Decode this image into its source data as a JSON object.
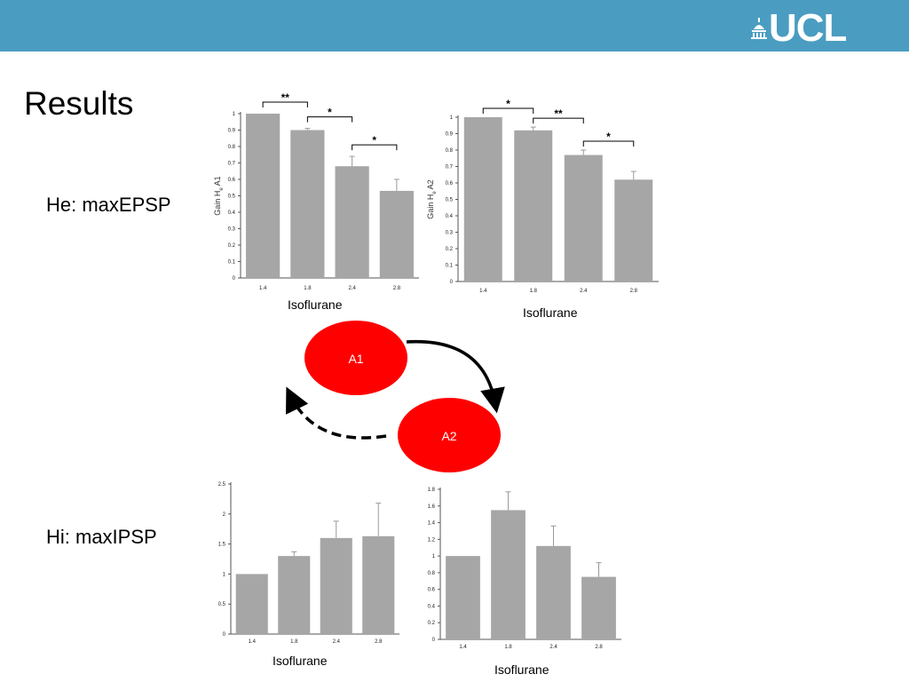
{
  "slide": {
    "title": "Results",
    "logo_text": "UCL",
    "he_label": "He: maxEPSP",
    "hi_label": "Hi: maxIPSP",
    "colors": {
      "header": "#4a9dc1",
      "bar": "#a6a6a6",
      "node": "#ff0000"
    }
  },
  "diagram": {
    "nodes": [
      "A1",
      "A2"
    ],
    "edges": [
      {
        "from": "A1",
        "to": "A2",
        "style": "solid"
      },
      {
        "from": "A2",
        "to": "A1",
        "style": "dashed"
      }
    ]
  },
  "chart_data": [
    {
      "id": "he-a1",
      "type": "bar",
      "categories": [
        "1.4",
        "1.8",
        "2.4",
        "2.8"
      ],
      "values": [
        1.0,
        0.9,
        0.68,
        0.53
      ],
      "errors": [
        0.0,
        0.01,
        0.06,
        0.07
      ],
      "ylim": [
        0,
        1
      ],
      "yticks": [
        0,
        0.1,
        0.2,
        0.3,
        0.4,
        0.5,
        0.6,
        0.7,
        0.8,
        0.9,
        1
      ],
      "ytick_labels": [
        "0",
        "0.1",
        "0.2",
        "0.3",
        "0.4",
        "0.5",
        "0.6",
        "0.7",
        "0.8",
        "0.9",
        "1"
      ],
      "ylabel": "Gain H",
      "ylabel_sub": "e",
      "ylabel_suffix": " A1",
      "xlabel": "Isoflurane",
      "significance": [
        {
          "from": 0,
          "to": 1,
          "label": "**"
        },
        {
          "from": 1,
          "to": 2,
          "label": "*"
        },
        {
          "from": 2,
          "to": 3,
          "label": "*"
        }
      ]
    },
    {
      "id": "he-a2",
      "type": "bar",
      "categories": [
        "1.4",
        "1.8",
        "2.4",
        "2.8"
      ],
      "values": [
        1.0,
        0.92,
        0.77,
        0.62
      ],
      "errors": [
        0.0,
        0.02,
        0.03,
        0.05
      ],
      "ylim": [
        0,
        1
      ],
      "yticks": [
        0,
        0.1,
        0.2,
        0.3,
        0.4,
        0.5,
        0.6,
        0.7,
        0.8,
        0.9,
        1
      ],
      "ytick_labels": [
        "0",
        "0.1",
        "0.2",
        "0.3",
        "0.4",
        "0.5",
        "0.6",
        "0.7",
        "0.8",
        "0.9",
        "1"
      ],
      "ylabel": "Gain H",
      "ylabel_sub": "e",
      "ylabel_suffix": " A2",
      "xlabel": "Isoflurane",
      "significance": [
        {
          "from": 0,
          "to": 1,
          "label": "*"
        },
        {
          "from": 1,
          "to": 2,
          "label": "**"
        },
        {
          "from": 2,
          "to": 3,
          "label": "*"
        }
      ]
    },
    {
      "id": "hi-a1",
      "type": "bar",
      "categories": [
        "1.4",
        "1.8",
        "2.4",
        "2.8"
      ],
      "values": [
        1.0,
        1.3,
        1.6,
        1.63
      ],
      "errors": [
        0.0,
        0.07,
        0.28,
        0.55
      ],
      "ylim": [
        0,
        2.5
      ],
      "yticks": [
        0,
        0.5,
        1,
        1.5,
        2,
        2.5
      ],
      "ytick_labels": [
        "0",
        "0.5",
        "1",
        "1.5",
        "2",
        "2.5"
      ],
      "xlabel": "Isoflurane",
      "significance": []
    },
    {
      "id": "hi-a2",
      "type": "bar",
      "categories": [
        "1.4",
        "1.8",
        "2.4",
        "2.8"
      ],
      "values": [
        1.0,
        1.55,
        1.12,
        0.75
      ],
      "errors": [
        0.0,
        0.22,
        0.24,
        0.17
      ],
      "ylim": [
        0,
        1.8
      ],
      "yticks": [
        0,
        0.2,
        0.4,
        0.6,
        0.8,
        1,
        1.2,
        1.4,
        1.6,
        1.8
      ],
      "ytick_labels": [
        "0",
        "0.2",
        "0.4",
        "0.6",
        "0.8",
        "1",
        "1.2",
        "1.4",
        "1.6",
        "1.8"
      ],
      "xlabel": "Isoflurane",
      "significance": []
    }
  ]
}
